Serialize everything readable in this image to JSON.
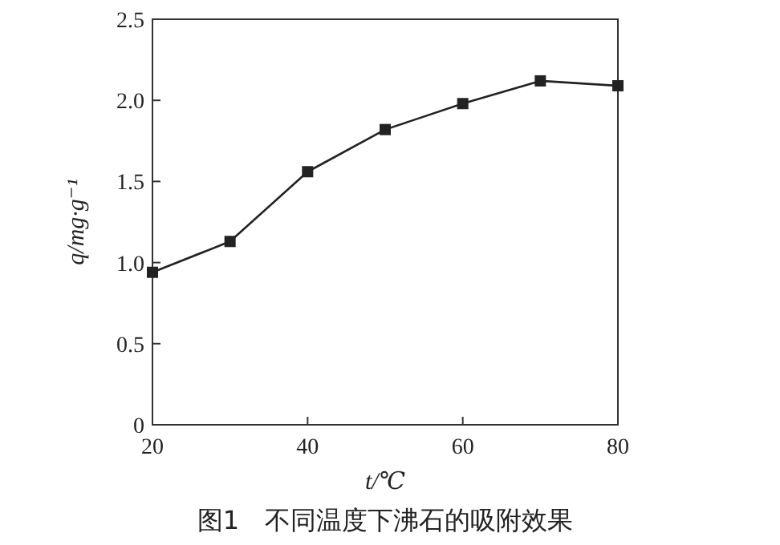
{
  "chart_data": {
    "type": "line",
    "title": "图1　不同温度下沸石的吸附效果",
    "xlabel": "t/℃",
    "ylabel": "q/mg·g⁻¹",
    "x": [
      20,
      30,
      40,
      50,
      60,
      70,
      80
    ],
    "series": [
      {
        "color": "#222222",
        "values": [
          0.94,
          1.13,
          1.56,
          1.82,
          1.98,
          2.12,
          2.09
        ]
      }
    ],
    "xlim": [
      20,
      80
    ],
    "ylim": [
      0,
      2.5
    ],
    "xticks": [
      20,
      40,
      60,
      80
    ],
    "yticks": [
      0,
      {
        "value": 0.5,
        "label": "0.5"
      },
      {
        "value": 1,
        "label": "1.0"
      },
      {
        "value": 1.5,
        "label": "1.5"
      },
      {
        "value": 2,
        "label": "2.0"
      },
      {
        "value": 2.5,
        "label": "2.5"
      }
    ],
    "marker": "square",
    "line_style": "solid"
  }
}
